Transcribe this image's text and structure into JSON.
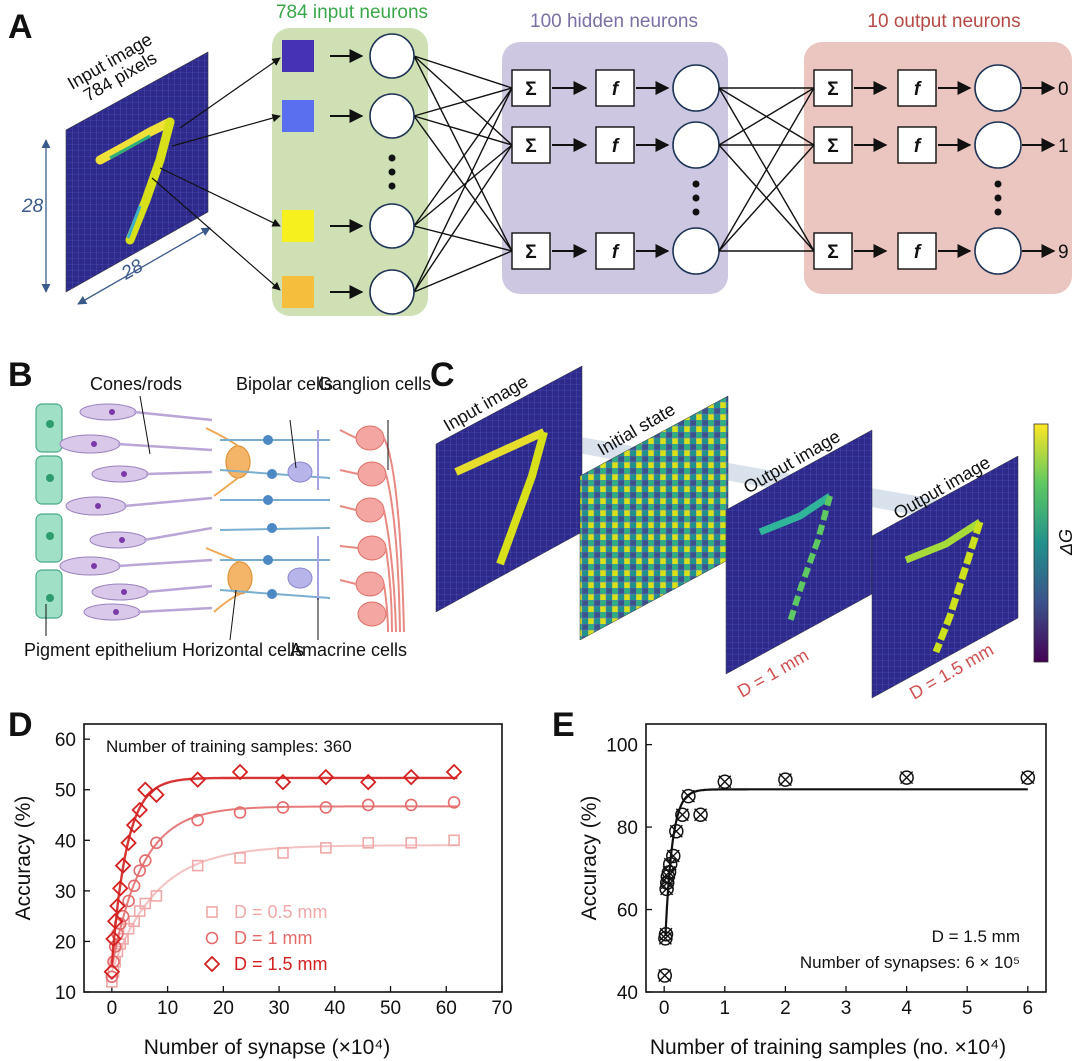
{
  "panels": {
    "A": {
      "label": "A",
      "input_image_line1": "Input image",
      "input_image_line2": "784 pixels",
      "dim_vertical": "28",
      "dim_horizontal": "28",
      "input_layer_title": "784 input neurons",
      "hidden_layer_title": "100 hidden neurons",
      "output_layer_title": "10 output neurons",
      "sum_symbol": "Σ",
      "func_symbol": "f",
      "outputs": [
        "0",
        "1",
        "9"
      ],
      "colors": {
        "input": "#cfe0b4",
        "hidden": "#cdc7e2",
        "output": "#ebc5c0",
        "input_title": "#3aa64a",
        "hidden_title": "#7b6fa6",
        "output_title": "#b54a45",
        "pixel_colors": [
          "#4632b4",
          "#5a6ef0",
          "#f5f01e",
          "#f5be3c"
        ]
      }
    },
    "B": {
      "label": "B",
      "labels": [
        "Cones/rods",
        "Bipolar cells",
        "Ganglion cells",
        "Pigment epithelium",
        "Horizontal cells",
        "Amacrine cells"
      ]
    },
    "C": {
      "label": "C",
      "stack_titles": [
        "Input image",
        "Initial state",
        "Output image",
        "Output image"
      ],
      "distance_labels": [
        "D = 1 mm",
        "D = 1.5 mm"
      ],
      "colorbar_label": "ΔG",
      "colormap": "viridis"
    },
    "D": {
      "label": "D"
    },
    "E": {
      "label": "E"
    }
  },
  "chart_data": [
    {
      "panel": "D",
      "type": "scatter",
      "annotation": "Number of training samples: 360",
      "xlabel": "Number of synapse (×10⁴)",
      "ylabel": "Accuracy (%)",
      "xlim": [
        -5,
        70
      ],
      "ylim": [
        10,
        63
      ],
      "xticks": [
        0,
        10,
        20,
        30,
        40,
        50,
        60,
        70
      ],
      "yticks": [
        10,
        20,
        30,
        40,
        50,
        60
      ],
      "legend_position": "bottom-left",
      "series": [
        {
          "name": "D = 0.5 mm",
          "marker": "square",
          "color": "#f0a8a8",
          "x": [
            0,
            0.3,
            0.6,
            1,
            1.5,
            2,
            3,
            4,
            5,
            6,
            8,
            15.4,
            23,
            30.7,
            38.4,
            46,
            53.7,
            61.4
          ],
          "y": [
            12,
            14,
            16,
            18,
            19.5,
            20.5,
            22.5,
            24,
            26,
            27.5,
            29,
            35,
            36.5,
            37.5,
            38.5,
            39.5,
            39.5,
            40
          ]
        },
        {
          "name": "D = 1 mm",
          "marker": "circle",
          "color": "#e46b6b",
          "x": [
            0,
            0.3,
            0.6,
            1,
            1.5,
            2,
            3,
            4,
            5,
            6,
            8,
            15.4,
            23,
            30.7,
            38.4,
            46,
            53.7,
            61.4
          ],
          "y": [
            13,
            16,
            19,
            21.5,
            23.5,
            25,
            28,
            31,
            34,
            36,
            39.5,
            44,
            45.5,
            46.5,
            46.5,
            47,
            47,
            47.5
          ]
        },
        {
          "name": "D = 1.5 mm",
          "marker": "diamond",
          "color": "#d42020",
          "x": [
            0,
            0.3,
            0.6,
            1,
            1.5,
            2,
            3,
            4,
            5,
            6,
            8,
            15.4,
            23,
            30.7,
            38.4,
            46,
            53.7,
            61.4
          ],
          "y": [
            14,
            20.5,
            24,
            27,
            30.5,
            35,
            39.5,
            43,
            46,
            50,
            49,
            52,
            53.5,
            51.5,
            52.5,
            51.5,
            52.5,
            53.5
          ]
        }
      ]
    },
    {
      "panel": "E",
      "type": "scatter",
      "annotation_line1": "D = 1.5 mm",
      "annotation_line2": "Number of synapses: 6 × 10⁵",
      "xlabel": "Number of training samples (no. ×10⁴)",
      "ylabel": "Accuracy (%)",
      "xlim": [
        -0.3,
        6.3
      ],
      "ylim": [
        40,
        105
      ],
      "xticks": [
        0,
        1,
        2,
        3,
        4,
        5,
        6
      ],
      "yticks": [
        40,
        60,
        80,
        100
      ],
      "series": [
        {
          "marker": "circle-x",
          "color": "#111111",
          "x": [
            0.01,
            0.02,
            0.03,
            0.04,
            0.05,
            0.06,
            0.08,
            0.1,
            0.15,
            0.2,
            0.3,
            0.4,
            0.6,
            1,
            2,
            4,
            6
          ],
          "y": [
            44,
            53,
            54,
            65,
            66.5,
            68,
            69,
            71,
            73,
            79,
            83,
            87.5,
            83,
            91,
            91.5,
            92,
            92
          ]
        }
      ]
    }
  ]
}
